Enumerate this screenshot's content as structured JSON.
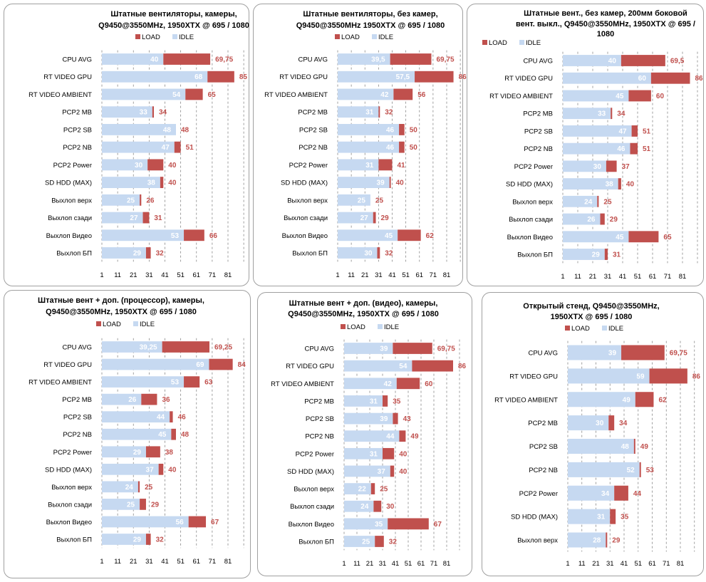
{
  "colors": {
    "load": "#c0504d",
    "idle": "#c6d9f1",
    "grid": "#888888",
    "border": "#a0a0a0"
  },
  "legend": {
    "load": "LOAD",
    "idle": "IDLE"
  },
  "chart_data": [
    {
      "type": "bar",
      "orientation": "horizontal",
      "stacked_overlay": true,
      "title": [
        "Штатные вентиляторы,  камеры,",
        "Q9450@3550MHz,  1950XTX  @ 695  / 1080"
      ],
      "xticks": [
        1,
        11,
        21,
        31,
        41,
        51,
        61,
        71,
        81
      ],
      "xlim": [
        1,
        91
      ],
      "grid": "vertical-dashed",
      "legend_position": "top",
      "categories": [
        "CPU AVG",
        "RT VIDEO GPU",
        "RT VIDEO AMBIENT",
        "PCP2 MB",
        "PCP2 SB",
        "PCP2 NB",
        "PCP2 Power",
        "SD HDD (MAX)",
        "Выхлоп верх",
        "Выхлоп сзади",
        "Выхлоп Видео",
        "Выхлоп БП"
      ],
      "series": [
        {
          "name": "IDLE",
          "values": [
            40,
            68,
            54,
            33,
            48,
            47,
            30,
            38,
            25,
            27,
            53,
            29
          ]
        },
        {
          "name": "LOAD",
          "values": [
            69.75,
            85,
            65,
            34,
            48,
            51,
            40,
            40,
            26,
            31,
            66,
            32
          ]
        }
      ]
    },
    {
      "type": "bar",
      "orientation": "horizontal",
      "stacked_overlay": true,
      "title": [
        "Штатные вентиляторы,  без  камер,",
        "Q9450@3550MHz  1950XTX  @ 695  / 1080"
      ],
      "xticks": [
        1,
        11,
        21,
        31,
        41,
        51,
        61,
        71,
        81
      ],
      "xlim": [
        1,
        91
      ],
      "grid": "vertical-dashed",
      "legend_position": "top",
      "categories": [
        "CPU AVG",
        "RT VIDEO GPU",
        "RT VIDEO AMBIENT",
        "PCP2 MB",
        "PCP2 SB",
        "PCP2 NB",
        "PCP2 Power",
        "SD HDD (MAX)",
        "Выхлоп верх",
        "Выхлоп сзади",
        "Выхлоп Видео",
        "Выхлоп БП"
      ],
      "series": [
        {
          "name": "IDLE",
          "values": [
            39.5,
            57.5,
            42,
            31,
            46,
            46,
            31,
            39,
            25,
            27,
            45,
            30
          ]
        },
        {
          "name": "LOAD",
          "values": [
            69.75,
            86,
            56,
            32,
            50,
            50,
            41,
            40,
            25,
            29,
            62,
            32
          ]
        }
      ]
    },
    {
      "type": "bar",
      "orientation": "horizontal",
      "stacked_overlay": true,
      "title": [
        "Штатные вент.,  без  камер,   200мм  боковой",
        "вент. выкл.,  Q9450@3550MHz,  1950XTX  @  695  /",
        "1080"
      ],
      "xticks": [
        1,
        11,
        21,
        31,
        41,
        51,
        61,
        71,
        81
      ],
      "xlim": [
        1,
        91
      ],
      "grid": "vertical-dashed",
      "legend_position": "top-left",
      "categories": [
        "CPU AVG",
        "RT VIDEO GPU",
        "RT VIDEO AMBIENT",
        "PCP2 MB",
        "PCP2 SB",
        "PCP2 NB",
        "PCP2 Power",
        "SD HDD (MAX)",
        "Выхлоп верх",
        "Выхлоп сзади",
        "Выхлоп Видео",
        "Выхлоп БП"
      ],
      "series": [
        {
          "name": "IDLE",
          "values": [
            40,
            60,
            45,
            33,
            47,
            46,
            30,
            38,
            24,
            26,
            45,
            29
          ]
        },
        {
          "name": "LOAD",
          "values": [
            69.5,
            86,
            60,
            34,
            51,
            51,
            37,
            40,
            25,
            29,
            65,
            31
          ]
        }
      ]
    },
    {
      "type": "bar",
      "orientation": "horizontal",
      "stacked_overlay": true,
      "title": [
        "Штатные вент + доп.  (процессор),  камеры,",
        "Q9450@3550MHz,  1950XTX  @ 695  / 1080"
      ],
      "xticks": [
        1,
        11,
        21,
        31,
        41,
        51,
        61,
        71,
        81
      ],
      "xlim": [
        1,
        91
      ],
      "grid": "vertical-dashed",
      "legend_position": "top",
      "categories": [
        "CPU AVG",
        "RT VIDEO GPU",
        "RT VIDEO AMBIENT",
        "PCP2 MB",
        "PCP2 SB",
        "PCP2 NB",
        "PCP2 Power",
        "SD HDD (MAX)",
        "Выхлоп верх",
        "Выхлоп сзади",
        "Выхлоп Видео",
        "Выхлоп БП"
      ],
      "series": [
        {
          "name": "IDLE",
          "values": [
            39.25,
            69,
            53,
            26,
            44,
            45,
            29,
            37,
            24,
            25,
            56,
            29
          ]
        },
        {
          "name": "LOAD",
          "values": [
            69.25,
            84,
            63,
            36,
            46,
            48,
            38,
            40,
            25,
            29,
            67,
            32
          ]
        }
      ]
    },
    {
      "type": "bar",
      "orientation": "horizontal",
      "stacked_overlay": true,
      "title": [
        "Штатные вент + доп.  (видео), камеры,",
        "Q9450@3550MHz,  1950XTX  @ 695  / 1080"
      ],
      "xticks": [
        1,
        11,
        21,
        31,
        41,
        51,
        61,
        71,
        81
      ],
      "xlim": [
        1,
        91
      ],
      "grid": "vertical-dashed",
      "legend_position": "top",
      "categories": [
        "CPU AVG",
        "RT VIDEO GPU",
        "RT VIDEO AMBIENT",
        "PCP2 MB",
        "PCP2 SB",
        "PCP2 NB",
        "PCP2 Power",
        "SD HDD (MAX)",
        "Выхлоп верх",
        "Выхлоп сзади",
        "Выхлоп Видео",
        "Выхлоп БП"
      ],
      "series": [
        {
          "name": "IDLE",
          "values": [
            39,
            54,
            42,
            31,
            39,
            44,
            31,
            37,
            22,
            24,
            35,
            25
          ]
        },
        {
          "name": "LOAD",
          "values": [
            69.75,
            86,
            60,
            35,
            43,
            49,
            40,
            40,
            25,
            30,
            67,
            32
          ]
        }
      ]
    },
    {
      "type": "bar",
      "orientation": "horizontal",
      "stacked_overlay": true,
      "title": [
        "Открытый стенд,  Q9450@3550MHz,",
        "1950XTX  @ 695  / 1080"
      ],
      "xticks": [
        1,
        11,
        21,
        31,
        41,
        51,
        61,
        71,
        81
      ],
      "xlim": [
        1,
        91
      ],
      "grid": "vertical-dashed",
      "legend_position": "top",
      "categories": [
        "CPU AVG",
        "RT VIDEO GPU",
        "RT VIDEO AMBIENT",
        "PCP2 MB",
        "PCP2 SB",
        "PCP2 NB",
        "PCP2 Power",
        "SD HDD (MAX)",
        "Выхлоп верх"
      ],
      "series": [
        {
          "name": "IDLE",
          "values": [
            39,
            59,
            49,
            30,
            48,
            52,
            34,
            31,
            28
          ]
        },
        {
          "name": "LOAD",
          "values": [
            69.75,
            86,
            62,
            34,
            49,
            53,
            44,
            35,
            29
          ]
        }
      ]
    }
  ]
}
